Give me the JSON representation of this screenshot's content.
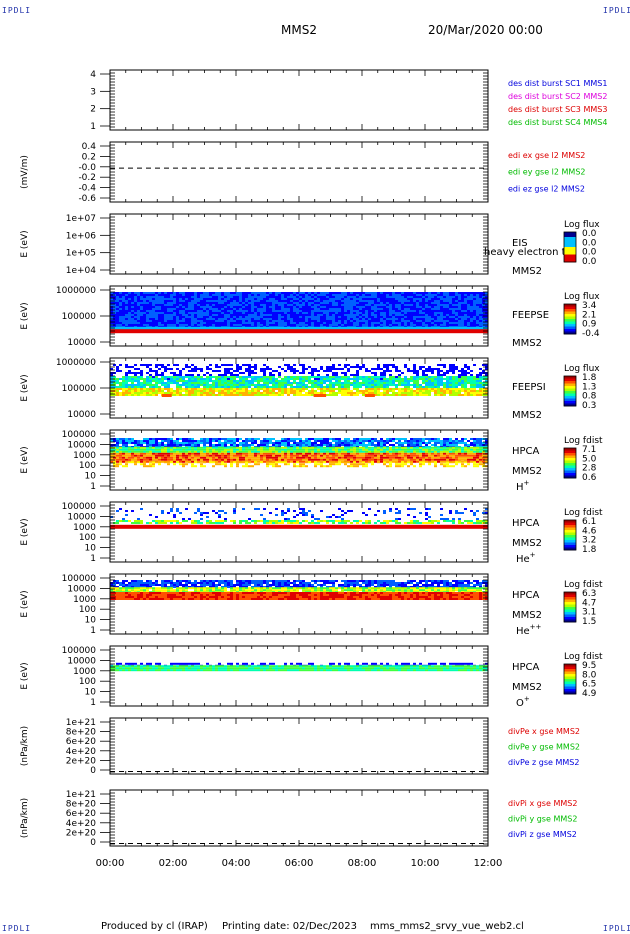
{
  "corner_label": "IPDLI",
  "header": {
    "spacecraft": "MMS2",
    "datetime": "20/Mar/2020 00:00"
  },
  "footer": {
    "produced": "Produced by cl (IRAP)",
    "printed": "Printing date: 02/Dec/2023",
    "script": "mms_mms2_srvy_vue_web2.cl"
  },
  "colors": {
    "blue": "#0000dd",
    "magenta": "#dd00dd",
    "red": "#dd0000",
    "green": "#00bb00",
    "panel_bg": "#ffffff"
  },
  "x_axis": {
    "range_hours": [
      0,
      12
    ],
    "tick_labels": [
      "00:00",
      "02:00",
      "04:00",
      "06:00",
      "08:00",
      "10:00",
      "12:00"
    ]
  },
  "chart_data": [
    {
      "type": "line",
      "id": "dist",
      "yticks": [
        "4",
        "3",
        "2",
        "1"
      ],
      "ylabel": "",
      "legend": [
        {
          "text": "des dist burst SC1 MMS1",
          "color": "#0000dd"
        },
        {
          "text": "des dist burst SC2 MMS2",
          "color": "#dd00dd"
        },
        {
          "text": "des dist burst SC3 MMS3",
          "color": "#dd0000"
        },
        {
          "text": "des dist burst SC4 MMS4",
          "color": "#00bb00"
        }
      ],
      "ylim": [
        0.5,
        4.5
      ],
      "series": []
    },
    {
      "type": "line",
      "id": "edi",
      "yticks": [
        "0.4",
        "0.2",
        "-0.0",
        "-0.2",
        "-0.4",
        "-0.6"
      ],
      "ylabel": "(mV/m)",
      "legend": [
        {
          "text": "edi ex gse l2 MMS2",
          "color": "#dd0000"
        },
        {
          "text": "edi ey gse l2 MMS2",
          "color": "#00bb00"
        },
        {
          "text": "edi ez gse l2 MMS2",
          "color": "#0000dd"
        }
      ],
      "ylim": [
        -0.65,
        0.5
      ],
      "zero_line": true,
      "series": []
    },
    {
      "type": "heatmap",
      "id": "eis",
      "yticks": [
        "1e+07",
        "1e+06",
        "1e+05",
        "1e+04"
      ],
      "ylabel": "E (eV)",
      "instrument": "EIS",
      "overlay_text": "heavy electron to",
      "sc": "MMS2",
      "species": "",
      "cbar_title": "Log flux",
      "cbar_ticks": [
        "0.0",
        "0.0",
        "0.0",
        "0.0"
      ],
      "fill": "none"
    },
    {
      "type": "heatmap",
      "id": "feepse",
      "yticks": [
        "1000000",
        "100000",
        "10000"
      ],
      "ylabel": "E (eV)",
      "instrument": "FEEPSE",
      "overlay_text": "",
      "sc": "MMS2",
      "species": "",
      "cbar_title": "Log flux",
      "cbar_ticks": [
        "3.4",
        "2.1",
        "0.9",
        "-0.4"
      ],
      "fill": "feeps_e"
    },
    {
      "type": "heatmap",
      "id": "feepsi",
      "yticks": [
        "1000000",
        "100000",
        "10000"
      ],
      "ylabel": "E (eV)",
      "instrument": "FEEPSI",
      "overlay_text": "",
      "sc": "MMS2",
      "species": "",
      "cbar_title": "Log flux",
      "cbar_ticks": [
        "1.8",
        "1.3",
        "0.8",
        "0.3"
      ],
      "fill": "feeps_i"
    },
    {
      "type": "heatmap",
      "id": "hpca_h",
      "yticks": [
        "100000",
        "10000",
        "1000",
        "100",
        "10",
        "1"
      ],
      "ylabel": "E (eV)",
      "instrument": "HPCA",
      "overlay_text": "",
      "sc": "MMS2",
      "species": "H+",
      "cbar_title": "Log fdist",
      "cbar_ticks": [
        "7.1",
        "5.0",
        "2.8",
        "0.6"
      ],
      "fill": "hpca_h"
    },
    {
      "type": "heatmap",
      "id": "hpca_he",
      "yticks": [
        "100000",
        "10000",
        "1000",
        "100",
        "10",
        "1"
      ],
      "ylabel": "E (eV)",
      "instrument": "HPCA",
      "overlay_text": "",
      "sc": "MMS2",
      "species": "He+",
      "cbar_title": "Log fdist",
      "cbar_ticks": [
        "6.1",
        "4.6",
        "3.2",
        "1.8"
      ],
      "fill": "hpca_he"
    },
    {
      "type": "heatmap",
      "id": "hpca_hepp",
      "yticks": [
        "100000",
        "10000",
        "1000",
        "100",
        "10",
        "1"
      ],
      "ylabel": "E (eV)",
      "instrument": "HPCA",
      "overlay_text": "",
      "sc": "MMS2",
      "species": "He++",
      "cbar_title": "Log fdist",
      "cbar_ticks": [
        "6.3",
        "4.7",
        "3.1",
        "1.5"
      ],
      "fill": "hpca_hepp"
    },
    {
      "type": "heatmap",
      "id": "hpca_o",
      "yticks": [
        "100000",
        "10000",
        "1000",
        "100",
        "10",
        "1"
      ],
      "ylabel": "E (eV)",
      "instrument": "HPCA",
      "overlay_text": "",
      "sc": "MMS2",
      "species": "O+",
      "cbar_title": "Log fdist",
      "cbar_ticks": [
        "9.5",
        "8.0",
        "6.5",
        "4.9"
      ],
      "fill": "hpca_o"
    },
    {
      "type": "line",
      "id": "divpe",
      "yticks": [
        "1e+21",
        "8e+20",
        "6e+20",
        "4e+20",
        "2e+20",
        "0"
      ],
      "ylabel": "(nPa/km)",
      "legend": [
        {
          "text": "divPe x gse MMS2",
          "color": "#dd0000"
        },
        {
          "text": "divPe y gse MMS2",
          "color": "#00bb00"
        },
        {
          "text": "divPe z gse MMS2",
          "color": "#0000dd"
        }
      ],
      "ylim": [
        -5e+19,
        1.05e+21
      ],
      "zero_line": true,
      "series": []
    },
    {
      "type": "line",
      "id": "divpi",
      "yticks": [
        "1e+21",
        "8e+20",
        "6e+20",
        "4e+20",
        "2e+20",
        "0"
      ],
      "ylabel": "(nPa/km)",
      "legend": [
        {
          "text": "divPi x gse MMS2",
          "color": "#dd0000"
        },
        {
          "text": "divPi y gse MMS2",
          "color": "#00bb00"
        },
        {
          "text": "divPi z gse MMS2",
          "color": "#0000dd"
        }
      ],
      "ylim": [
        -5e+19,
        1.05e+21
      ],
      "zero_line": true,
      "series": []
    }
  ]
}
